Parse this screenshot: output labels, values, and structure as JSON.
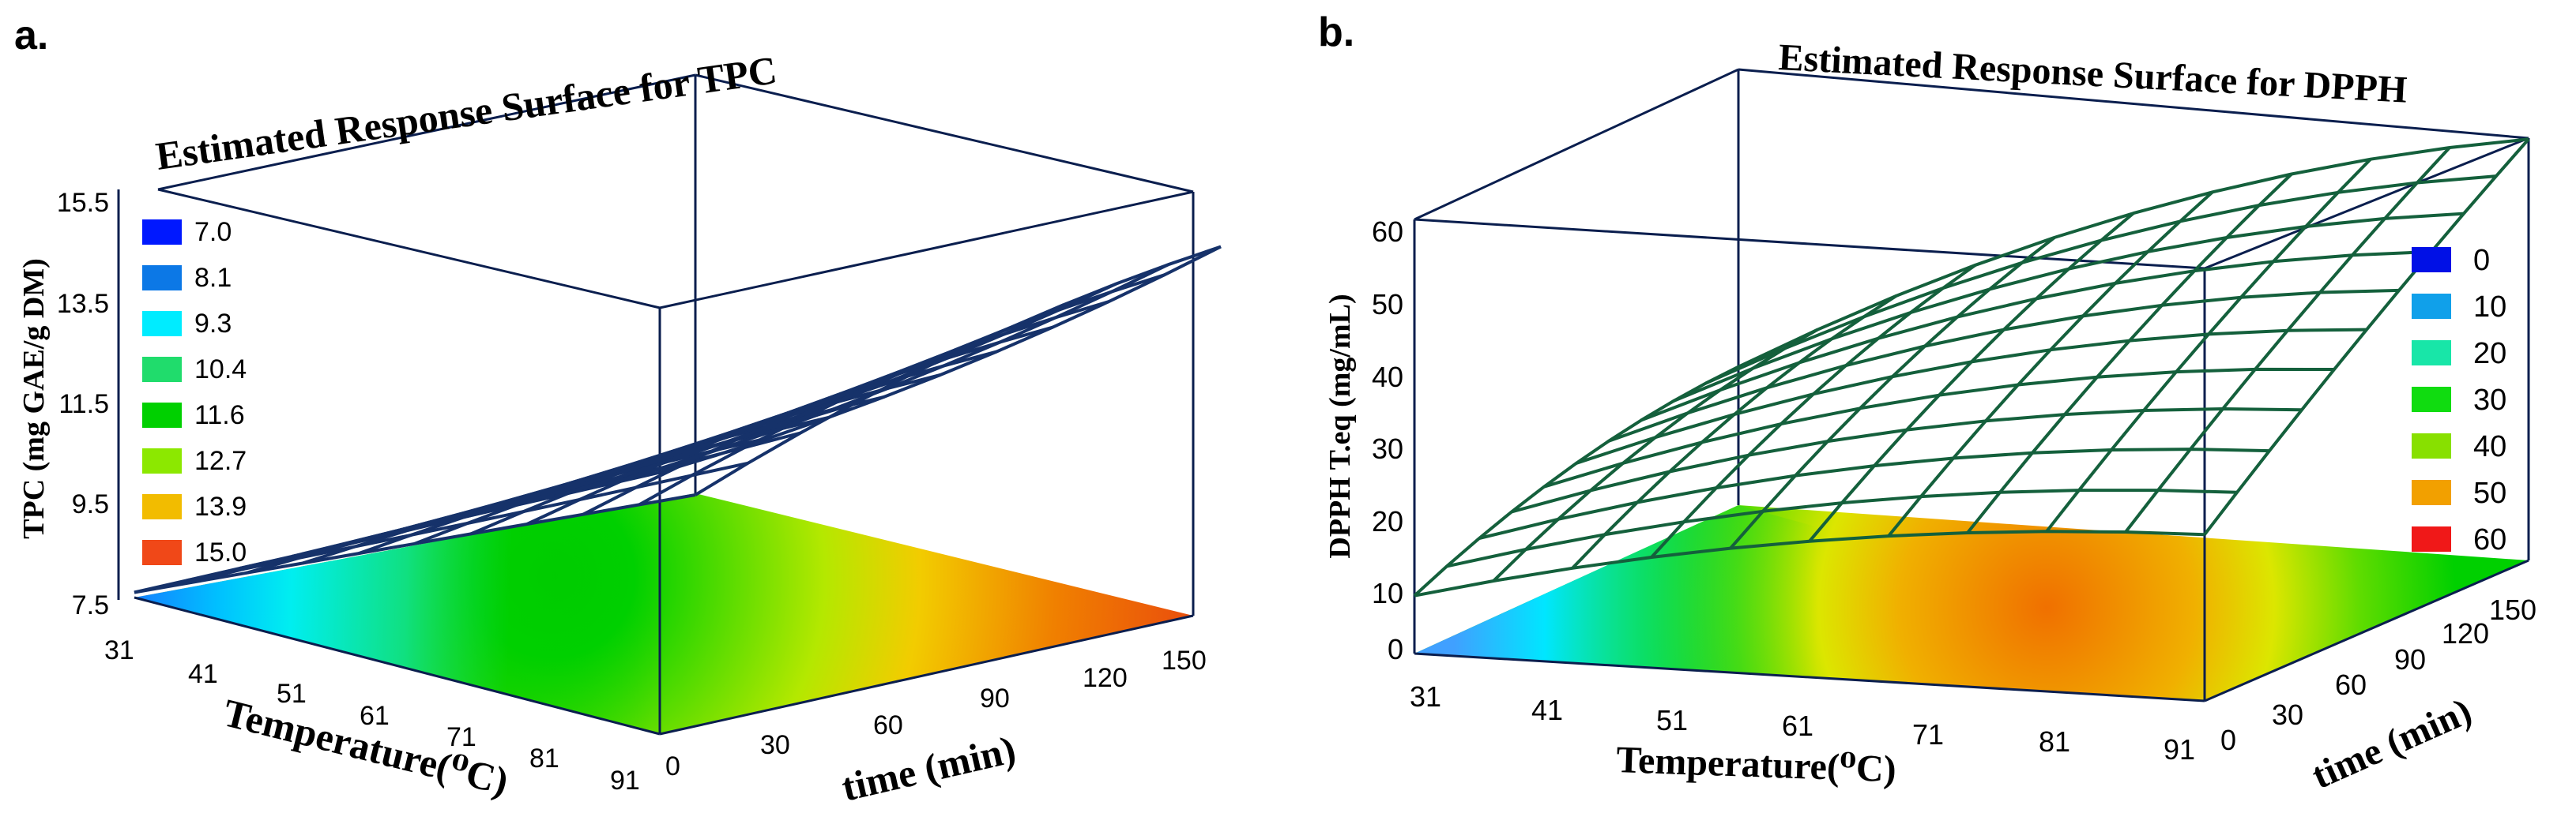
{
  "figure": {
    "panels": [
      {
        "label": "a.",
        "title": "Estimated Response Surface for TPC",
        "ylabel": "TPC (mg GAE/g DM)",
        "xlabel": "Temperature(⁰C)",
        "tlabel": "time (min)"
      },
      {
        "label": "b.",
        "title": "Estimated Response Surface for DPPH",
        "ylabel": "DPPH T.eq (mg/mL)",
        "xlabel": "Temperature(⁰C)",
        "tlabel": "time (min)"
      }
    ]
  },
  "chart_data": [
    {
      "type": "surface",
      "title": "Estimated Response Surface for TPC",
      "xlabel": "Temperature(⁰C)",
      "ylabel": "time (min)",
      "zlabel": "TPC (mg GAE/g DM)",
      "x_ticks": [
        "31",
        "41",
        "51",
        "61",
        "71",
        "81",
        "91"
      ],
      "y_ticks": [
        "0",
        "30",
        "60",
        "90",
        "120",
        "150"
      ],
      "z_ticks": [
        "7.5",
        "9.5",
        "11.5",
        "13.5",
        "15.5"
      ],
      "xlim": [
        31,
        91
      ],
      "ylim": [
        0,
        150
      ],
      "zlim": [
        7.5,
        15.5
      ],
      "legend": [
        "7.0",
        "8.1",
        "9.3",
        "10.4",
        "11.6",
        "12.7",
        "13.9",
        "15.0"
      ],
      "legend_colors": [
        "#0018ff",
        "#0c78e6",
        "#00ecff",
        "#20dc6c",
        "#00d000",
        "#8ce800",
        "#f2bc00",
        "#f04818"
      ],
      "legend_position": "top-left",
      "wire_color": "#16326a",
      "corners": {
        "T31_t0": 7.6,
        "T91_t0": 12.6,
        "T31_t150": 7.5,
        "T91_t150": 15.0
      },
      "maximum": {
        "T": 91,
        "t": 150,
        "value": 15.0
      }
    },
    {
      "type": "surface",
      "title": "Estimated Response Surface for DPPH",
      "xlabel": "Temperature(⁰C)",
      "ylabel": "time (min)",
      "zlabel": "DPPH T.eq (mg/mL)",
      "x_ticks": [
        "31",
        "41",
        "51",
        "61",
        "71",
        "81",
        "91"
      ],
      "y_ticks": [
        "0",
        "30",
        "60",
        "90",
        "120",
        "150"
      ],
      "z_ticks": [
        "0",
        "10",
        "20",
        "30",
        "40",
        "50",
        "60"
      ],
      "xlim": [
        31,
        91
      ],
      "ylim": [
        0,
        150
      ],
      "zlim": [
        0,
        60
      ],
      "legend": [
        "0",
        "10",
        "20",
        "30",
        "40",
        "50",
        "60"
      ],
      "legend_colors": [
        "#0010e6",
        "#10a0ea",
        "#18e6a8",
        "#10dc10",
        "#88e000",
        "#f2a000",
        "#f01818"
      ],
      "legend_position": "right",
      "wire_color": "#14603c",
      "corners": {
        "T31_t0": 8,
        "T91_t0": 23,
        "T31_t150": 20,
        "T91_t150": 58
      },
      "maximum": {
        "T": 78,
        "t": 150,
        "value": 61
      }
    }
  ]
}
